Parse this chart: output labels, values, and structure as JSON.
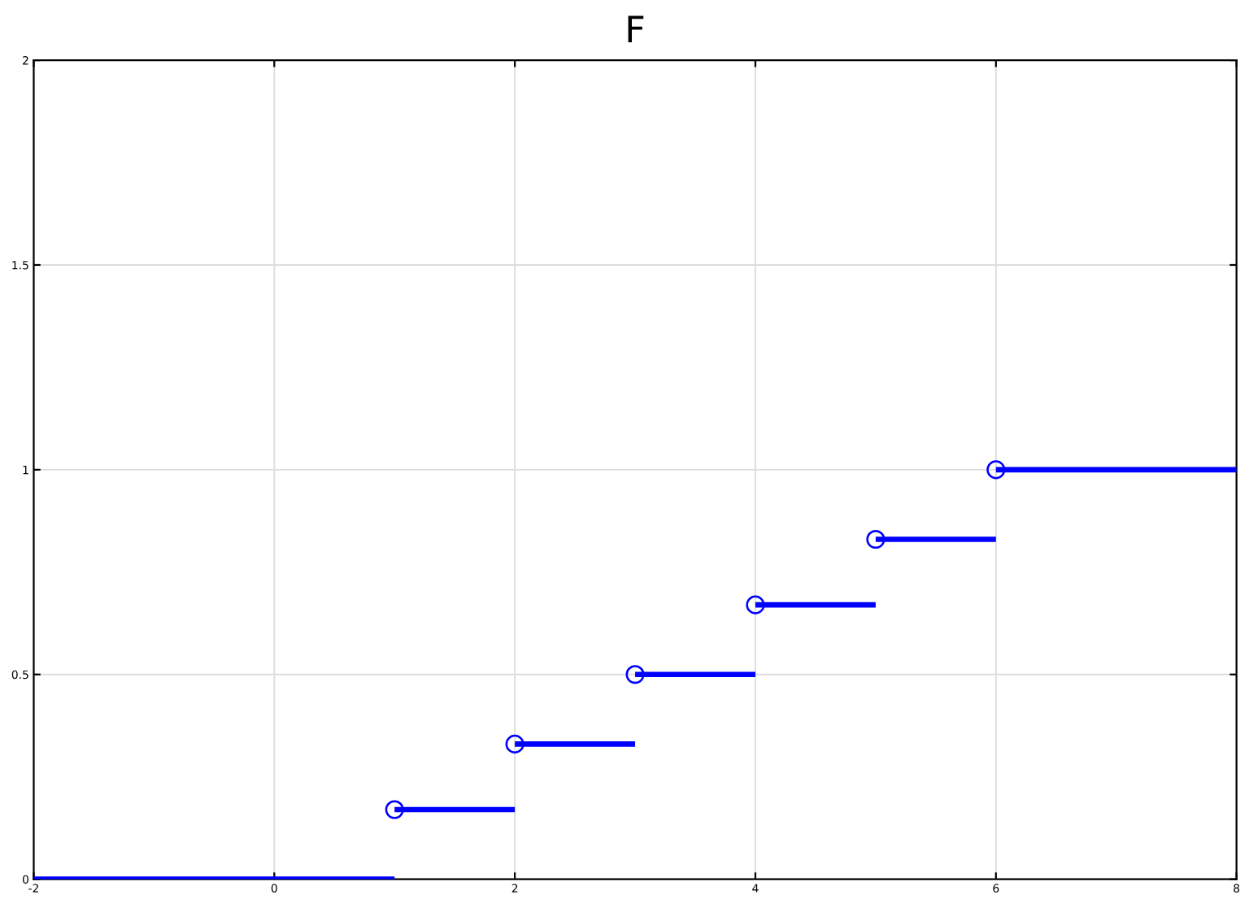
{
  "chart_data": {
    "type": "line",
    "title": "F",
    "series": [
      {
        "color": "#0000ff",
        "x": [
          -2,
          1
        ],
        "values": [
          0,
          0
        ]
      },
      {
        "color": "#0000ff",
        "x": [
          1,
          2
        ],
        "values": [
          0.17,
          0.17
        ]
      },
      {
        "color": "#0000ff",
        "x": [
          2,
          3
        ],
        "values": [
          0.33,
          0.33
        ]
      },
      {
        "color": "#0000ff",
        "x": [
          3,
          4
        ],
        "values": [
          0.5,
          0.5
        ]
      },
      {
        "color": "#0000ff",
        "x": [
          4,
          5
        ],
        "values": [
          0.67,
          0.67
        ]
      },
      {
        "color": "#0000ff",
        "x": [
          5,
          6
        ],
        "values": [
          0.83,
          0.83
        ]
      },
      {
        "color": "#0000ff",
        "x": [
          6,
          8
        ],
        "values": [
          1,
          1
        ]
      },
      {
        "type": "scatter",
        "color": "#0000ff",
        "marker": "circle",
        "x": [
          1,
          2,
          3,
          4,
          5,
          6
        ],
        "values": [
          0.17,
          0.33,
          0.5,
          0.67,
          0.83,
          1
        ]
      }
    ],
    "xlim": [
      -2,
      8
    ],
    "xticks": [
      -2,
      0,
      2,
      4,
      6,
      8
    ],
    "ylim": [
      0,
      2
    ],
    "yticks": [
      0,
      0.5,
      1,
      1.5,
      2
    ],
    "grid": true,
    "legend": false,
    "line_style": "solid"
  }
}
